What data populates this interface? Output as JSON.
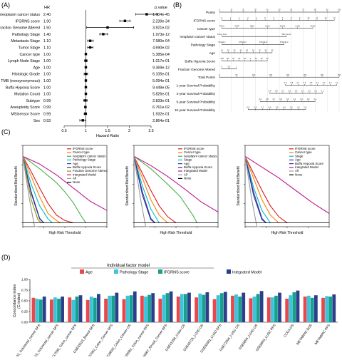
{
  "panel_labels": {
    "a": "(A)",
    "b": "(B)",
    "c": "(C)",
    "d": "(D)"
  },
  "chart_data": [
    {
      "id": "A",
      "type": "forest",
      "column_headers": {
        "hr": "HR",
        "p": "p.value"
      },
      "xlabel": "Hazard Ratio",
      "xlim": [
        0.5,
        2.5
      ],
      "xticks": [
        0.5,
        1,
        1.5,
        2,
        2.5
      ],
      "reference_line": 1,
      "rows": [
        {
          "label": "neoplasm cancer status",
          "hr": 2.4,
          "hr_text": "2.40",
          "lo": 2.15,
          "hi": 2.65,
          "p": "1.604e-45"
        },
        {
          "label": "IFGRNS score",
          "hr": 1.9,
          "hr_text": "1.90",
          "lo": 1.78,
          "hi": 2.02,
          "p": "2.239e-34"
        },
        {
          "label": "Fraction Genome Altered",
          "hr": 1.5,
          "hr_text": "1.50",
          "lo": 1.02,
          "hi": 2.1,
          "p": "3.921e-02"
        },
        {
          "label": "Pathology Stage",
          "hr": 1.4,
          "hr_text": "1.40",
          "lo": 1.32,
          "hi": 1.5,
          "p": "1.973e-12"
        },
        {
          "label": "Metastasis Stage",
          "hr": 1.1,
          "hr_text": "1.10",
          "lo": 1.04,
          "hi": 1.17,
          "p": "7.580e-04"
        },
        {
          "label": "Tumor Stage",
          "hr": 1.1,
          "hr_text": "1.10",
          "lo": 1.04,
          "hi": 1.16,
          "p": "4.690e-02"
        },
        {
          "label": "Cancer type",
          "hr": 1.0,
          "hr_text": "1.00",
          "lo": 0.99,
          "hi": 1.01,
          "p": "5.385e-04"
        },
        {
          "label": "Lymph Node Stage",
          "hr": 1.0,
          "hr_text": "1.00",
          "lo": 0.97,
          "hi": 1.03,
          "p": "1.017e-01"
        },
        {
          "label": "Age",
          "hr": 1.0,
          "hr_text": "1.00",
          "lo": 0.99,
          "hi": 1.01,
          "p": "9.369e-12"
        },
        {
          "label": "Histologic Grade",
          "hr": 1.0,
          "hr_text": "1.00",
          "lo": 0.96,
          "hi": 1.04,
          "p": "6.105e-01"
        },
        {
          "label": "TMB (nonsynonymous)",
          "hr": 1.0,
          "hr_text": "1.00",
          "lo": 0.99,
          "hi": 1.01,
          "p": "5.094e-01"
        },
        {
          "label": "Buffa Hypoxia Score",
          "hr": 1.0,
          "hr_text": "1.00",
          "lo": 0.99,
          "hi": 1.01,
          "p": "9.449e-05"
        },
        {
          "label": "Mutation Count",
          "hr": 1.0,
          "hr_text": "1.00",
          "lo": 0.99,
          "hi": 1.01,
          "p": "5.826e-01"
        },
        {
          "label": "Subtype",
          "hr": 0.99,
          "hr_text": "0.99",
          "lo": 0.95,
          "hi": 1.03,
          "p": "2.833e-01"
        },
        {
          "label": "Aneuploidy Score",
          "hr": 0.99,
          "hr_text": "0.99",
          "lo": 0.97,
          "hi": 1.01,
          "p": "6.761e-02"
        },
        {
          "label": "MSIsensor Score",
          "hr": 0.99,
          "hr_text": "0.99",
          "lo": 0.96,
          "hi": 1.02,
          "p": "1.932e-01"
        },
        {
          "label": "Sex",
          "hr": 0.93,
          "hr_text": "0.93",
          "lo": 0.86,
          "hi": 1.0,
          "p": "2.864e-01"
        }
      ]
    },
    {
      "id": "B",
      "type": "nomogram",
      "rows": [
        {
          "label": "Points",
          "kind": "scale",
          "start": 0,
          "end": 1,
          "labels": [
            "0",
            "10",
            "20",
            "30",
            "40",
            "50",
            "60",
            "70",
            "80",
            "90",
            "100"
          ]
        },
        {
          "label": "IFGRNS score",
          "kind": "scale",
          "start": 0.02,
          "end": 0.96,
          "labels": [
            "0",
            "1",
            "2",
            "3",
            "4",
            "5",
            "6",
            "7",
            "8",
            "9",
            "10",
            "11",
            "12",
            "13"
          ]
        },
        {
          "label": "Cancer type",
          "kind": "scale",
          "start": 0.02,
          "end": 0.78,
          "labels": [
            "THCA",
            "KIRP",
            "KIRC",
            "LUAD",
            "SKCM",
            "LUSC",
            "PAAD"
          ]
        },
        {
          "label": "neoplasm cancer status",
          "kind": "scale",
          "start": 0.02,
          "end": 0.56,
          "labels": [
            "Tumor Free",
            "With Tumor"
          ]
        },
        {
          "label": "Pathology Stage",
          "kind": "scale",
          "start": 0.02,
          "end": 0.54,
          "labels": [
            "STAGE I",
            "STAGE II",
            "STAGE III",
            "STAGE IV"
          ]
        },
        {
          "label": "Age",
          "kind": "scale",
          "start": 0.02,
          "end": 0.44,
          "labels": [
            "10",
            "20",
            "30",
            "40",
            "50",
            "60",
            "70",
            "80",
            "90"
          ]
        },
        {
          "label": "Buffa Hypoxia Score",
          "kind": "scale",
          "start": 0.02,
          "end": 0.4,
          "labels": [
            "-100",
            "-80",
            "-60",
            "-40",
            "-20",
            "0",
            "20",
            "40",
            "60"
          ]
        },
        {
          "label": "Fraction Genome Altered",
          "kind": "scale",
          "start": 0.02,
          "end": 0.14,
          "labels": [
            "0",
            "0.5",
            "1"
          ]
        },
        {
          "label": "Total Points",
          "kind": "scale",
          "start": 0,
          "end": 1,
          "labels": [
            "0",
            "50",
            "100",
            "150",
            "200",
            "250",
            "300",
            "350"
          ]
        },
        {
          "label": "1-year Survival Probability",
          "kind": "scale",
          "start": 0.55,
          "end": 0.98,
          "labels": [
            "0.9",
            "0.8",
            "0.7",
            "0.6",
            "0.5",
            "0.4",
            "0.3",
            "0.2",
            "0.1"
          ]
        },
        {
          "label": "3-year Survival Probability",
          "kind": "scale",
          "start": 0.42,
          "end": 0.86,
          "labels": [
            "0.9",
            "0.8",
            "0.7",
            "0.6",
            "0.5",
            "0.4",
            "0.3",
            "0.2",
            "0.1"
          ]
        },
        {
          "label": "5-year Survival Probability",
          "kind": "scale",
          "start": 0.34,
          "end": 0.8,
          "labels": [
            "0.9",
            "0.8",
            "0.7",
            "0.6",
            "0.5",
            "0.4",
            "0.3",
            "0.2",
            "0.1"
          ]
        },
        {
          "label": "10-year Survival Probability",
          "kind": "scale",
          "start": 0.24,
          "end": 0.72,
          "labels": [
            "0.9",
            "0.8",
            "0.7",
            "0.6",
            "0.5",
            "0.4",
            "0.3",
            "0.2",
            "0.1"
          ]
        }
      ]
    },
    {
      "id": "C",
      "type": "line",
      "panels": 3,
      "xlabel": "High Risk Threshold",
      "ylabel": "Standardized Net Benefit",
      "xlim": [
        0,
        1
      ],
      "ylim": [
        -0.05,
        1.0
      ],
      "series_sets": [
        [
          {
            "name": "IFGRNS score",
            "color": "#d7191c",
            "x": [
              0,
              0.1,
              0.2,
              0.3,
              0.4,
              0.5,
              0.6
            ],
            "y": [
              0.86,
              0.66,
              0.45,
              0.25,
              0.1,
              0.03,
              0
            ]
          },
          {
            "name": "Cancer type",
            "color": "#ff7f00",
            "x": [
              0,
              0.1,
              0.2,
              0.3,
              0.4,
              0.45
            ],
            "y": [
              0.86,
              0.6,
              0.34,
              0.12,
              0.03,
              0
            ]
          },
          {
            "name": "neoplasm cancer status",
            "color": "#4daf4a",
            "x": [
              0,
              0.2,
              0.4,
              0.5,
              0.6,
              0.7,
              0.75
            ],
            "y": [
              0.86,
              0.7,
              0.52,
              0.4,
              0.26,
              0.08,
              0
            ]
          },
          {
            "name": "Pathology Stage",
            "color": "#00bcd4",
            "x": [
              0,
              0.1,
              0.2,
              0.3,
              0.35
            ],
            "y": [
              0.86,
              0.5,
              0.22,
              0.05,
              0
            ]
          },
          {
            "name": "Age",
            "color": "#4a2fa8",
            "x": [
              0,
              0.1,
              0.2,
              0.25
            ],
            "y": [
              0.86,
              0.4,
              0.06,
              0
            ]
          },
          {
            "name": "Buffa Hypoxia Score",
            "color": "#1f3a93",
            "x": [
              0,
              0.1,
              0.2,
              0.25
            ],
            "y": [
              0.86,
              0.38,
              0.05,
              0
            ]
          },
          {
            "name": "Fraction Genome Altered",
            "color": "#8b8b00",
            "x": [
              0,
              0.1,
              0.18,
              0.22
            ],
            "y": [
              0.86,
              0.3,
              0.04,
              0
            ]
          },
          {
            "name": "Integrated Model",
            "color": "#c0168e",
            "x": [
              0,
              0.2,
              0.4,
              0.6,
              0.8,
              1.0
            ],
            "y": [
              0.86,
              0.76,
              0.62,
              0.45,
              0.28,
              0.16
            ]
          },
          {
            "name": "All",
            "color": "#999999",
            "x": [
              0,
              0.08,
              0.14,
              0.18
            ],
            "y": [
              0.86,
              0.3,
              -0.05,
              -0.05
            ]
          },
          {
            "name": "None",
            "color": "#000000",
            "x": [
              0,
              1
            ],
            "y": [
              0,
              0
            ]
          }
        ],
        [
          {
            "name": "IFGRNS score",
            "color": "#d7191c",
            "x": [
              0,
              0.1,
              0.2,
              0.3,
              0.4,
              0.5
            ],
            "y": [
              0.86,
              0.64,
              0.42,
              0.22,
              0.08,
              0
            ]
          },
          {
            "name": "Cancer type",
            "color": "#ff7f00",
            "x": [
              0,
              0.1,
              0.2,
              0.3,
              0.4
            ],
            "y": [
              0.86,
              0.58,
              0.3,
              0.1,
              0
            ]
          },
          {
            "name": "neoplasm cancer status",
            "color": "#4daf4a",
            "x": [
              0,
              0.2,
              0.4,
              0.55,
              0.7,
              0.75
            ],
            "y": [
              0.86,
              0.7,
              0.5,
              0.34,
              0.1,
              0
            ]
          },
          {
            "name": "Stage",
            "color": "#00bcd4",
            "x": [
              0,
              0.1,
              0.2,
              0.3
            ],
            "y": [
              0.86,
              0.48,
              0.18,
              0
            ]
          },
          {
            "name": "Age",
            "color": "#4a2fa8",
            "x": [
              0,
              0.1,
              0.2,
              0.25
            ],
            "y": [
              0.86,
              0.4,
              0.06,
              0
            ]
          },
          {
            "name": "Buffa Hypoxia Score",
            "color": "#1f3a93",
            "x": [
              0,
              0.1,
              0.2,
              0.25
            ],
            "y": [
              0.86,
              0.36,
              0.04,
              0
            ]
          },
          {
            "name": "Integrated Model",
            "color": "#c0168e",
            "x": [
              0,
              0.2,
              0.4,
              0.6,
              0.8,
              1.0
            ],
            "y": [
              0.86,
              0.74,
              0.6,
              0.44,
              0.27,
              0.14
            ]
          },
          {
            "name": "All",
            "color": "#999999",
            "x": [
              0,
              0.08,
              0.14,
              0.18
            ],
            "y": [
              0.86,
              0.3,
              -0.05,
              -0.05
            ]
          },
          {
            "name": "None",
            "color": "#000000",
            "x": [
              0,
              1
            ],
            "y": [
              0,
              0
            ]
          }
        ],
        [
          {
            "name": "IFGRNS score",
            "color": "#d7191c",
            "x": [
              0,
              0.1,
              0.2,
              0.3,
              0.4,
              0.5
            ],
            "y": [
              0.86,
              0.64,
              0.42,
              0.22,
              0.08,
              0
            ]
          },
          {
            "name": "Cancer type",
            "color": "#ff7f00",
            "x": [
              0,
              0.1,
              0.2,
              0.3,
              0.4
            ],
            "y": [
              0.86,
              0.58,
              0.3,
              0.1,
              0
            ]
          },
          {
            "name": "Stage",
            "color": "#00bcd4",
            "x": [
              0,
              0.1,
              0.2,
              0.3
            ],
            "y": [
              0.86,
              0.46,
              0.16,
              0
            ]
          },
          {
            "name": "Age",
            "color": "#4a2fa8",
            "x": [
              0,
              0.1,
              0.2,
              0.25
            ],
            "y": [
              0.86,
              0.4,
              0.06,
              0
            ]
          },
          {
            "name": "Buffa Hypoxia Score",
            "color": "#1f3a93",
            "x": [
              0,
              0.1,
              0.2,
              0.25
            ],
            "y": [
              0.86,
              0.36,
              0.04,
              0
            ]
          },
          {
            "name": "Integrated Model",
            "color": "#c0168e",
            "x": [
              0,
              0.2,
              0.4,
              0.6,
              0.8,
              1.0
            ],
            "y": [
              0.86,
              0.72,
              0.58,
              0.42,
              0.26,
              0.12
            ]
          },
          {
            "name": "All",
            "color": "#999999",
            "x": [
              0,
              0.08,
              0.14,
              0.18
            ],
            "y": [
              0.86,
              0.3,
              -0.05,
              -0.05
            ]
          },
          {
            "name": "None",
            "color": "#000000",
            "x": [
              0,
              1
            ],
            "y": [
              0,
              0
            ]
          }
        ]
      ]
    },
    {
      "id": "D",
      "type": "bar",
      "legend_title": "Individual factor model",
      "ylabel": "Concordance index\n(C-index)",
      "ylim": [
        0,
        1
      ],
      "yticks": [
        0,
        0.25,
        0.5,
        0.75,
        1.0
      ],
      "yticklabels": [
        "0.00",
        "0.25",
        "0.50",
        "0.75",
        "1.00"
      ],
      "categories": [
        "GSE14333_Colorectal_cancer DFS",
        "GSE16615_Colorectal_cancer DFS",
        "GSE17536_Colon_cancer DFS",
        "GSE33113_Breast DFS",
        "GSE37892_Colon_Cancer DFS",
        "GSE38832_Colon_Cancer OS",
        "GSE39582_Colon_cancer RFS",
        "GSE40967_Rectal_Cancer DFS",
        "GSE41258_Colon OS",
        "GSE45725_LUAD OS",
        "GSE50081_LUAD DFS",
        "GSE72094_LUSC OS",
        "GSE8894_LUAD OS",
        "GSE8894_LUSC RFS",
        "CCGA OS",
        "METABRIC DSS",
        "METABRIC RFS"
      ],
      "series": [
        {
          "name": "Age",
          "color": "#e8474b",
          "values": [
            0.57,
            0.53,
            0.58,
            0.52,
            0.55,
            0.54,
            0.62,
            0.55,
            0.6,
            0.58,
            0.54,
            0.62,
            0.56,
            0.58,
            0.55,
            0.6,
            0.57
          ]
        },
        {
          "name": "Pathology Stage",
          "color": "#3bc4de",
          "values": [
            0.55,
            0.58,
            0.52,
            0.6,
            0.62,
            0.62,
            0.6,
            0.64,
            0.66,
            0.67,
            0.63,
            0.65,
            0.6,
            0.58,
            0.63,
            0.62,
            0.61
          ]
        },
        {
          "name": "IFGRNS score",
          "color": "#18a08e",
          "values": [
            0.53,
            0.55,
            0.6,
            0.57,
            0.62,
            0.63,
            0.64,
            0.68,
            0.66,
            0.64,
            0.68,
            0.6,
            0.66,
            0.62,
            0.7,
            0.57,
            0.6
          ]
        },
        {
          "name": "Integrated Model",
          "color": "#2b3f8c",
          "values": [
            0.6,
            0.6,
            0.63,
            0.66,
            0.69,
            0.72,
            0.68,
            0.72,
            0.69,
            0.7,
            0.71,
            0.69,
            0.73,
            0.69,
            0.74,
            0.63,
            0.65
          ]
        }
      ]
    }
  ]
}
